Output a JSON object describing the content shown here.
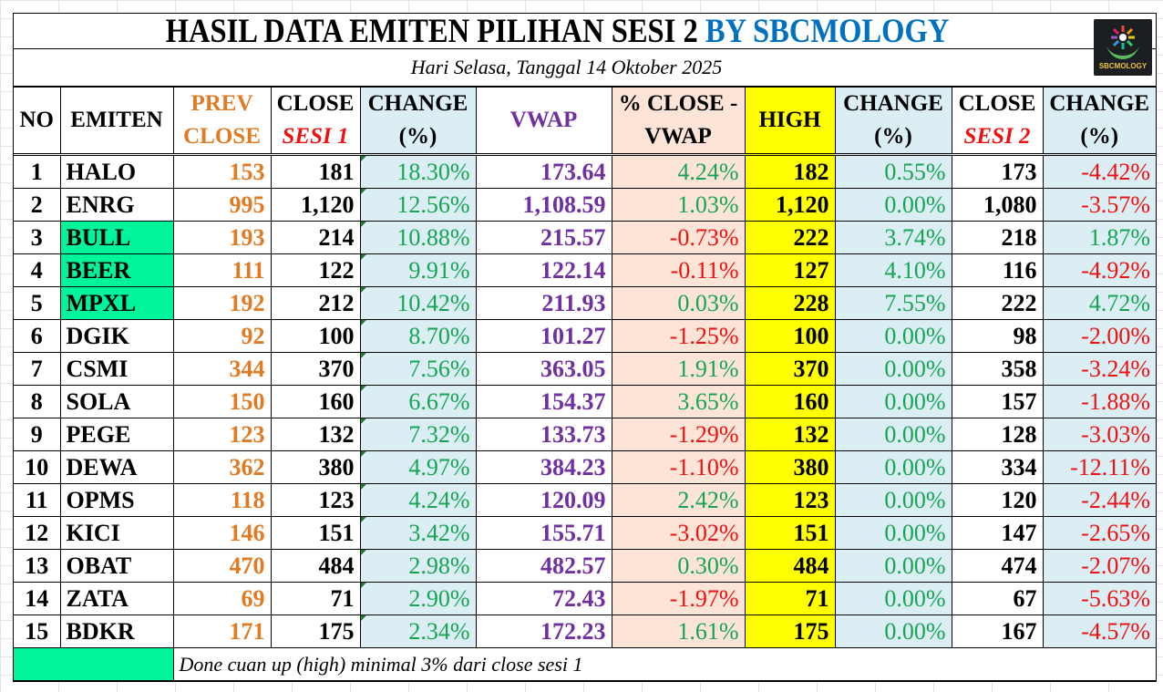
{
  "title": {
    "main": "HASIL DATA EMITEN PILIHAN SESI 2",
    "brand": "BY SBCMOLOGY",
    "logo_icon": "sbcmology-logo-icon",
    "logo_text": "SBCMOLOGY"
  },
  "subtitle": "Hari Selasa, Tanggal 14 Oktober 2025",
  "headers": {
    "no": "NO",
    "emiten": "EMITEN",
    "prev_close_1": "PREV",
    "prev_close_2": "CLOSE",
    "close1_1": "CLOSE",
    "close1_2": "SESI 1",
    "change1_1": "CHANGE",
    "change1_2": "(%)",
    "vwap": "VWAP",
    "close_vwap_1": "% CLOSE  -",
    "close_vwap_2": "VWAP",
    "high": "HIGH",
    "change_high_1": "CHANGE",
    "change_high_2": "(%)",
    "close2_1": "CLOSE",
    "close2_2": "SESI 2",
    "change2_1": "CHANGE",
    "change2_2": "(%)"
  },
  "colors": {
    "highlight_mint": "#00f59b",
    "positive_green": "#17a553",
    "negative_red": "#ee1111",
    "prev_close_orange": "#e07b24",
    "vwap_purple": "#7030a0",
    "high_yellow": "#ffff00",
    "change_bg_blue": "#daeef3",
    "vwap_diff_bg_peach": "#fce4d6",
    "brand_blue": "#0070c0"
  },
  "rows": [
    {
      "no": "1",
      "emiten": "HALO",
      "highlight": false,
      "prev_close": "153",
      "close_sesi1": "181",
      "change1": "18.30%",
      "vwap": "173.64",
      "close_vwap": "4.24%",
      "high": "182",
      "change_high": "0.55%",
      "close_sesi2": "173",
      "change2": "-4.42%"
    },
    {
      "no": "2",
      "emiten": "ENRG",
      "highlight": false,
      "prev_close": "995",
      "close_sesi1": "1,120",
      "change1": "12.56%",
      "vwap": "1,108.59",
      "close_vwap": "1.03%",
      "high": "1,120",
      "change_high": "0.00%",
      "close_sesi2": "1,080",
      "change2": "-3.57%"
    },
    {
      "no": "3",
      "emiten": "BULL",
      "highlight": true,
      "prev_close": "193",
      "close_sesi1": "214",
      "change1": "10.88%",
      "vwap": "215.57",
      "close_vwap": "-0.73%",
      "high": "222",
      "change_high": "3.74%",
      "close_sesi2": "218",
      "change2": "1.87%"
    },
    {
      "no": "4",
      "emiten": "BEER",
      "highlight": true,
      "prev_close": "111",
      "close_sesi1": "122",
      "change1": "9.91%",
      "vwap": "122.14",
      "close_vwap": "-0.11%",
      "high": "127",
      "change_high": "4.10%",
      "close_sesi2": "116",
      "change2": "-4.92%"
    },
    {
      "no": "5",
      "emiten": "MPXL",
      "highlight": true,
      "prev_close": "192",
      "close_sesi1": "212",
      "change1": "10.42%",
      "vwap": "211.93",
      "close_vwap": "0.03%",
      "high": "228",
      "change_high": "7.55%",
      "close_sesi2": "222",
      "change2": "4.72%"
    },
    {
      "no": "6",
      "emiten": "DGIK",
      "highlight": false,
      "prev_close": "92",
      "close_sesi1": "100",
      "change1": "8.70%",
      "vwap": "101.27",
      "close_vwap": "-1.25%",
      "high": "100",
      "change_high": "0.00%",
      "close_sesi2": "98",
      "change2": "-2.00%"
    },
    {
      "no": "7",
      "emiten": "CSMI",
      "highlight": false,
      "prev_close": "344",
      "close_sesi1": "370",
      "change1": "7.56%",
      "vwap": "363.05",
      "close_vwap": "1.91%",
      "high": "370",
      "change_high": "0.00%",
      "close_sesi2": "358",
      "change2": "-3.24%"
    },
    {
      "no": "8",
      "emiten": "SOLA",
      "highlight": false,
      "prev_close": "150",
      "close_sesi1": "160",
      "change1": "6.67%",
      "vwap": "154.37",
      "close_vwap": "3.65%",
      "high": "160",
      "change_high": "0.00%",
      "close_sesi2": "157",
      "change2": "-1.88%"
    },
    {
      "no": "9",
      "emiten": "PEGE",
      "highlight": false,
      "prev_close": "123",
      "close_sesi1": "132",
      "change1": "7.32%",
      "vwap": "133.73",
      "close_vwap": "-1.29%",
      "high": "132",
      "change_high": "0.00%",
      "close_sesi2": "128",
      "change2": "-3.03%"
    },
    {
      "no": "10",
      "emiten": "DEWA",
      "highlight": false,
      "prev_close": "362",
      "close_sesi1": "380",
      "change1": "4.97%",
      "vwap": "384.23",
      "close_vwap": "-1.10%",
      "high": "380",
      "change_high": "0.00%",
      "close_sesi2": "334",
      "change2": "-12.11%"
    },
    {
      "no": "11",
      "emiten": "OPMS",
      "highlight": false,
      "prev_close": "118",
      "close_sesi1": "123",
      "change1": "4.24%",
      "vwap": "120.09",
      "close_vwap": "2.42%",
      "high": "123",
      "change_high": "0.00%",
      "close_sesi2": "120",
      "change2": "-2.44%"
    },
    {
      "no": "12",
      "emiten": "KICI",
      "highlight": false,
      "prev_close": "146",
      "close_sesi1": "151",
      "change1": "3.42%",
      "vwap": "155.71",
      "close_vwap": "-3.02%",
      "high": "151",
      "change_high": "0.00%",
      "close_sesi2": "147",
      "change2": "-2.65%"
    },
    {
      "no": "13",
      "emiten": "OBAT",
      "highlight": false,
      "prev_close": "470",
      "close_sesi1": "484",
      "change1": "2.98%",
      "vwap": "482.57",
      "close_vwap": "0.30%",
      "high": "484",
      "change_high": "0.00%",
      "close_sesi2": "474",
      "change2": "-2.07%"
    },
    {
      "no": "14",
      "emiten": "ZATA",
      "highlight": false,
      "prev_close": "69",
      "close_sesi1": "71",
      "change1": "2.90%",
      "vwap": "72.43",
      "close_vwap": "-1.97%",
      "high": "71",
      "change_high": "0.00%",
      "close_sesi2": "67",
      "change2": "-5.63%"
    },
    {
      "no": "15",
      "emiten": "BDKR",
      "highlight": false,
      "prev_close": "171",
      "close_sesi1": "175",
      "change1": "2.34%",
      "vwap": "172.23",
      "close_vwap": "1.61%",
      "high": "175",
      "change_high": "0.00%",
      "close_sesi2": "167",
      "change2": "-4.57%"
    }
  ],
  "legend": {
    "swatch_color": "#00f59b",
    "note": "Done cuan up (high) minimal 3% dari close sesi 1"
  }
}
